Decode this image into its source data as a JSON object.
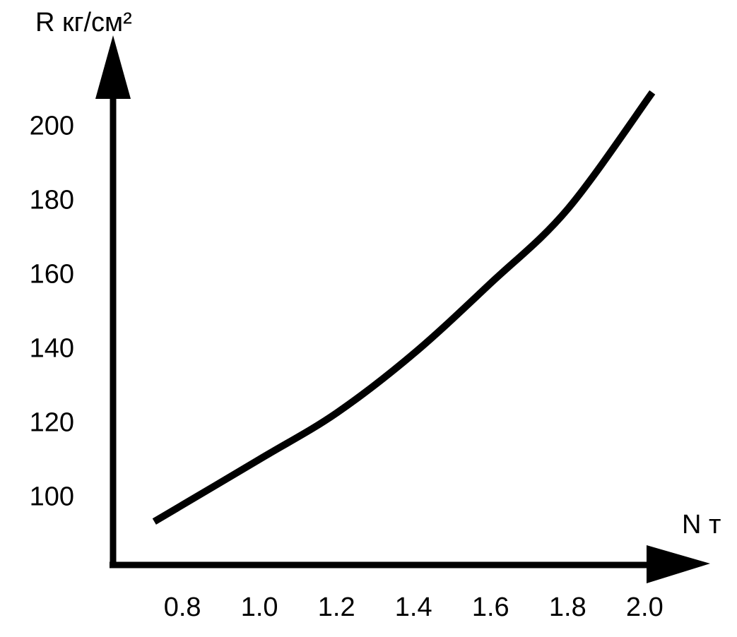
{
  "chart_data": {
    "type": "line",
    "y_label": "R кг/см²",
    "x_label": "N т",
    "x": [
      0.727,
      1.0,
      1.2,
      1.4,
      1.6,
      1.8,
      2.02
    ],
    "series": [
      {
        "color": "#000000",
        "values": [
          93.7,
          110.5,
          123,
          139,
          158,
          178,
          209.5
        ]
      }
    ],
    "xlim": [
      0.62,
      2.17
    ],
    "ylim": [
      82,
      223
    ],
    "xticks": [
      0.8,
      {
        "value": 1,
        "label": "1.0"
      },
      1.2,
      1.4,
      1.6,
      1.8,
      {
        "value": 2,
        "label": "2.0"
      }
    ],
    "yticks": [
      100,
      120,
      140,
      160,
      180,
      200
    ],
    "grid": false
  }
}
